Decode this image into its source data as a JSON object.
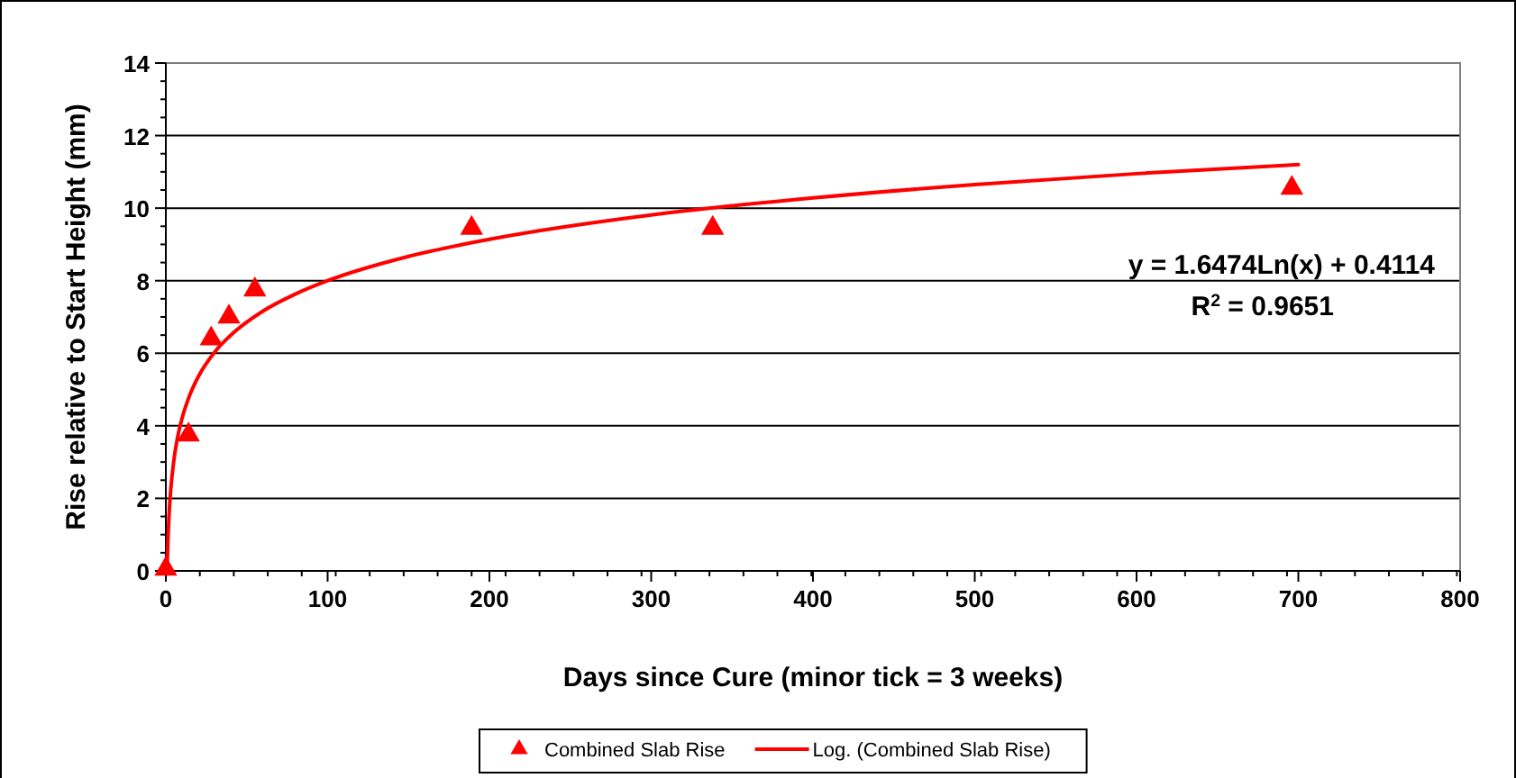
{
  "chart_data": {
    "type": "scatter",
    "xlabel": "Days since Cure (minor tick = 3 weeks)",
    "ylabel": "Rise relative to Start Height (mm)",
    "xlim": [
      0,
      800
    ],
    "xticks": [
      0,
      {
        "value": 21,
        "label": null
      },
      {
        "value": 42,
        "label": null
      },
      {
        "value": 63,
        "label": null
      },
      {
        "value": 84,
        "label": null
      },
      100,
      {
        "value": 105,
        "label": null
      },
      {
        "value": 126,
        "label": null
      },
      {
        "value": 147,
        "label": null
      },
      {
        "value": 168,
        "label": null
      },
      {
        "value": 189,
        "label": null
      },
      200,
      {
        "value": 210,
        "label": null
      },
      {
        "value": 231,
        "label": null
      },
      {
        "value": 252,
        "label": null
      },
      {
        "value": 273,
        "label": null
      },
      {
        "value": 294,
        "label": null
      },
      300,
      {
        "value": 315,
        "label": null
      },
      {
        "value": 336,
        "label": null
      },
      {
        "value": 357,
        "label": null
      },
      {
        "value": 378,
        "label": null
      },
      {
        "value": 399,
        "label": null
      },
      400,
      {
        "value": 420,
        "label": null
      },
      {
        "value": 441,
        "label": null
      },
      {
        "value": 462,
        "label": null
      },
      {
        "value": 483,
        "label": null
      },
      500,
      {
        "value": 504,
        "label": null
      },
      {
        "value": 525,
        "label": null
      },
      {
        "value": 546,
        "label": null
      },
      {
        "value": 567,
        "label": null
      },
      {
        "value": 588,
        "label": null
      },
      600,
      {
        "value": 609,
        "label": null
      },
      {
        "value": 630,
        "label": null
      },
      {
        "value": 651,
        "label": null
      },
      {
        "value": 672,
        "label": null
      },
      {
        "value": 693,
        "label": null
      },
      700,
      {
        "value": 714,
        "label": null
      },
      {
        "value": 735,
        "label": null
      },
      {
        "value": 756,
        "label": null
      },
      {
        "value": 777,
        "label": null
      },
      {
        "value": 798,
        "label": null
      },
      800
    ],
    "ylim": [
      0,
      14
    ],
    "yticks": [
      0,
      {
        "value": 0.5,
        "label": null
      },
      {
        "value": 1,
        "label": null
      },
      {
        "value": 1.5,
        "label": null
      },
      2,
      {
        "value": 2.5,
        "label": null
      },
      {
        "value": 3,
        "label": null
      },
      {
        "value": 3.5,
        "label": null
      },
      4,
      {
        "value": 4.5,
        "label": null
      },
      {
        "value": 5,
        "label": null
      },
      {
        "value": 5.5,
        "label": null
      },
      6,
      {
        "value": 6.5,
        "label": null
      },
      {
        "value": 7,
        "label": null
      },
      {
        "value": 7.5,
        "label": null
      },
      8,
      {
        "value": 8.5,
        "label": null
      },
      {
        "value": 9,
        "label": null
      },
      {
        "value": 9.5,
        "label": null
      },
      10,
      {
        "value": 10.5,
        "label": null
      },
      {
        "value": 11,
        "label": null
      },
      {
        "value": 11.5,
        "label": null
      },
      12,
      {
        "value": 12.5,
        "label": null
      },
      {
        "value": 13,
        "label": null
      },
      {
        "value": 13.5,
        "label": null
      },
      14
    ],
    "grid": "y",
    "legend": "bottom",
    "series": [
      {
        "name": "Combined Slab Rise",
        "marker": "triangle",
        "color": "#ff0000",
        "x": [
          0,
          14,
          28,
          39,
          55,
          189,
          338,
          696
        ],
        "values": [
          0,
          3.7,
          6.35,
          6.95,
          7.7,
          9.4,
          9.4,
          10.5
        ]
      },
      {
        "name": "Log. (Combined Slab Rise)",
        "type": "line",
        "marker": "none",
        "line_style": "solid",
        "color": "#ff0000",
        "x": [
          0.8,
          1,
          2,
          3,
          5,
          7,
          10,
          15,
          20,
          30,
          40,
          60,
          80,
          100,
          150,
          200,
          300,
          400,
          500,
          600,
          700
        ],
        "values": [
          0.04,
          0.41,
          1.55,
          2.22,
          3.06,
          3.62,
          4.2,
          4.87,
          5.35,
          6.02,
          6.49,
          7.16,
          7.63,
          8,
          8.67,
          9.14,
          9.81,
          10.28,
          10.65,
          10.95,
          11.2
        ]
      }
    ],
    "annotations": [
      "y = 1.6474Ln(x) + 0.4114",
      "R$^{2}$ = 0.9651"
    ]
  }
}
